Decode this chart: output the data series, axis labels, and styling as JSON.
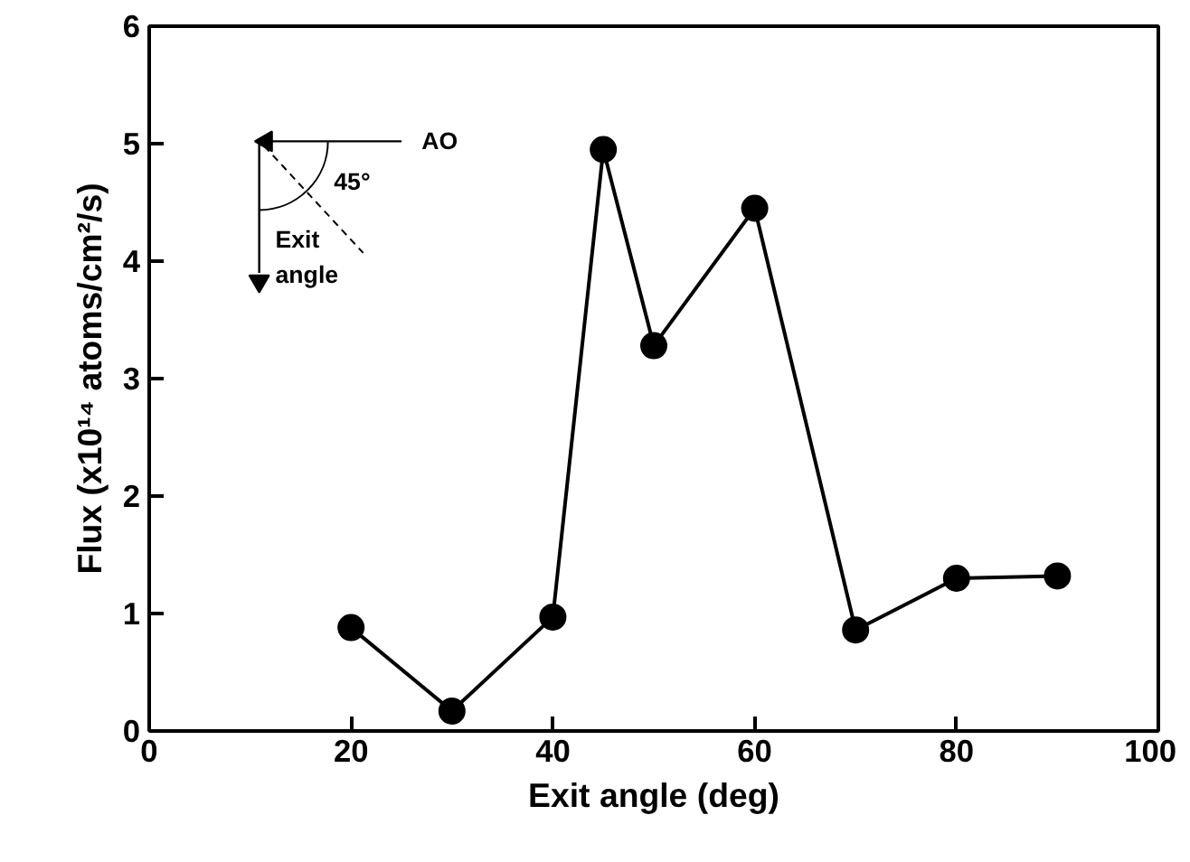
{
  "chart_data": {
    "type": "line",
    "xlabel": "Exit angle (deg)",
    "ylabel": "Flux (x10¹⁴ atoms/cm²/s)",
    "x": [
      20,
      30,
      40,
      45,
      50,
      60,
      70,
      80,
      90
    ],
    "series": [
      {
        "color": "#000000",
        "values": [
          0.88,
          0.17,
          0.97,
          4.95,
          3.28,
          4.45,
          0.86,
          1.3,
          1.32
        ]
      }
    ],
    "xlim": [
      0,
      100
    ],
    "xticks": [
      0,
      20,
      40,
      60,
      80,
      100
    ],
    "ylim": [
      0,
      6
    ],
    "yticks": [
      0,
      1,
      2,
      3,
      4,
      5,
      6
    ],
    "marker": "circle",
    "line_style": "solid",
    "grid": false,
    "annotations": [
      "AO",
      "45°",
      "Exit\nangle"
    ]
  }
}
